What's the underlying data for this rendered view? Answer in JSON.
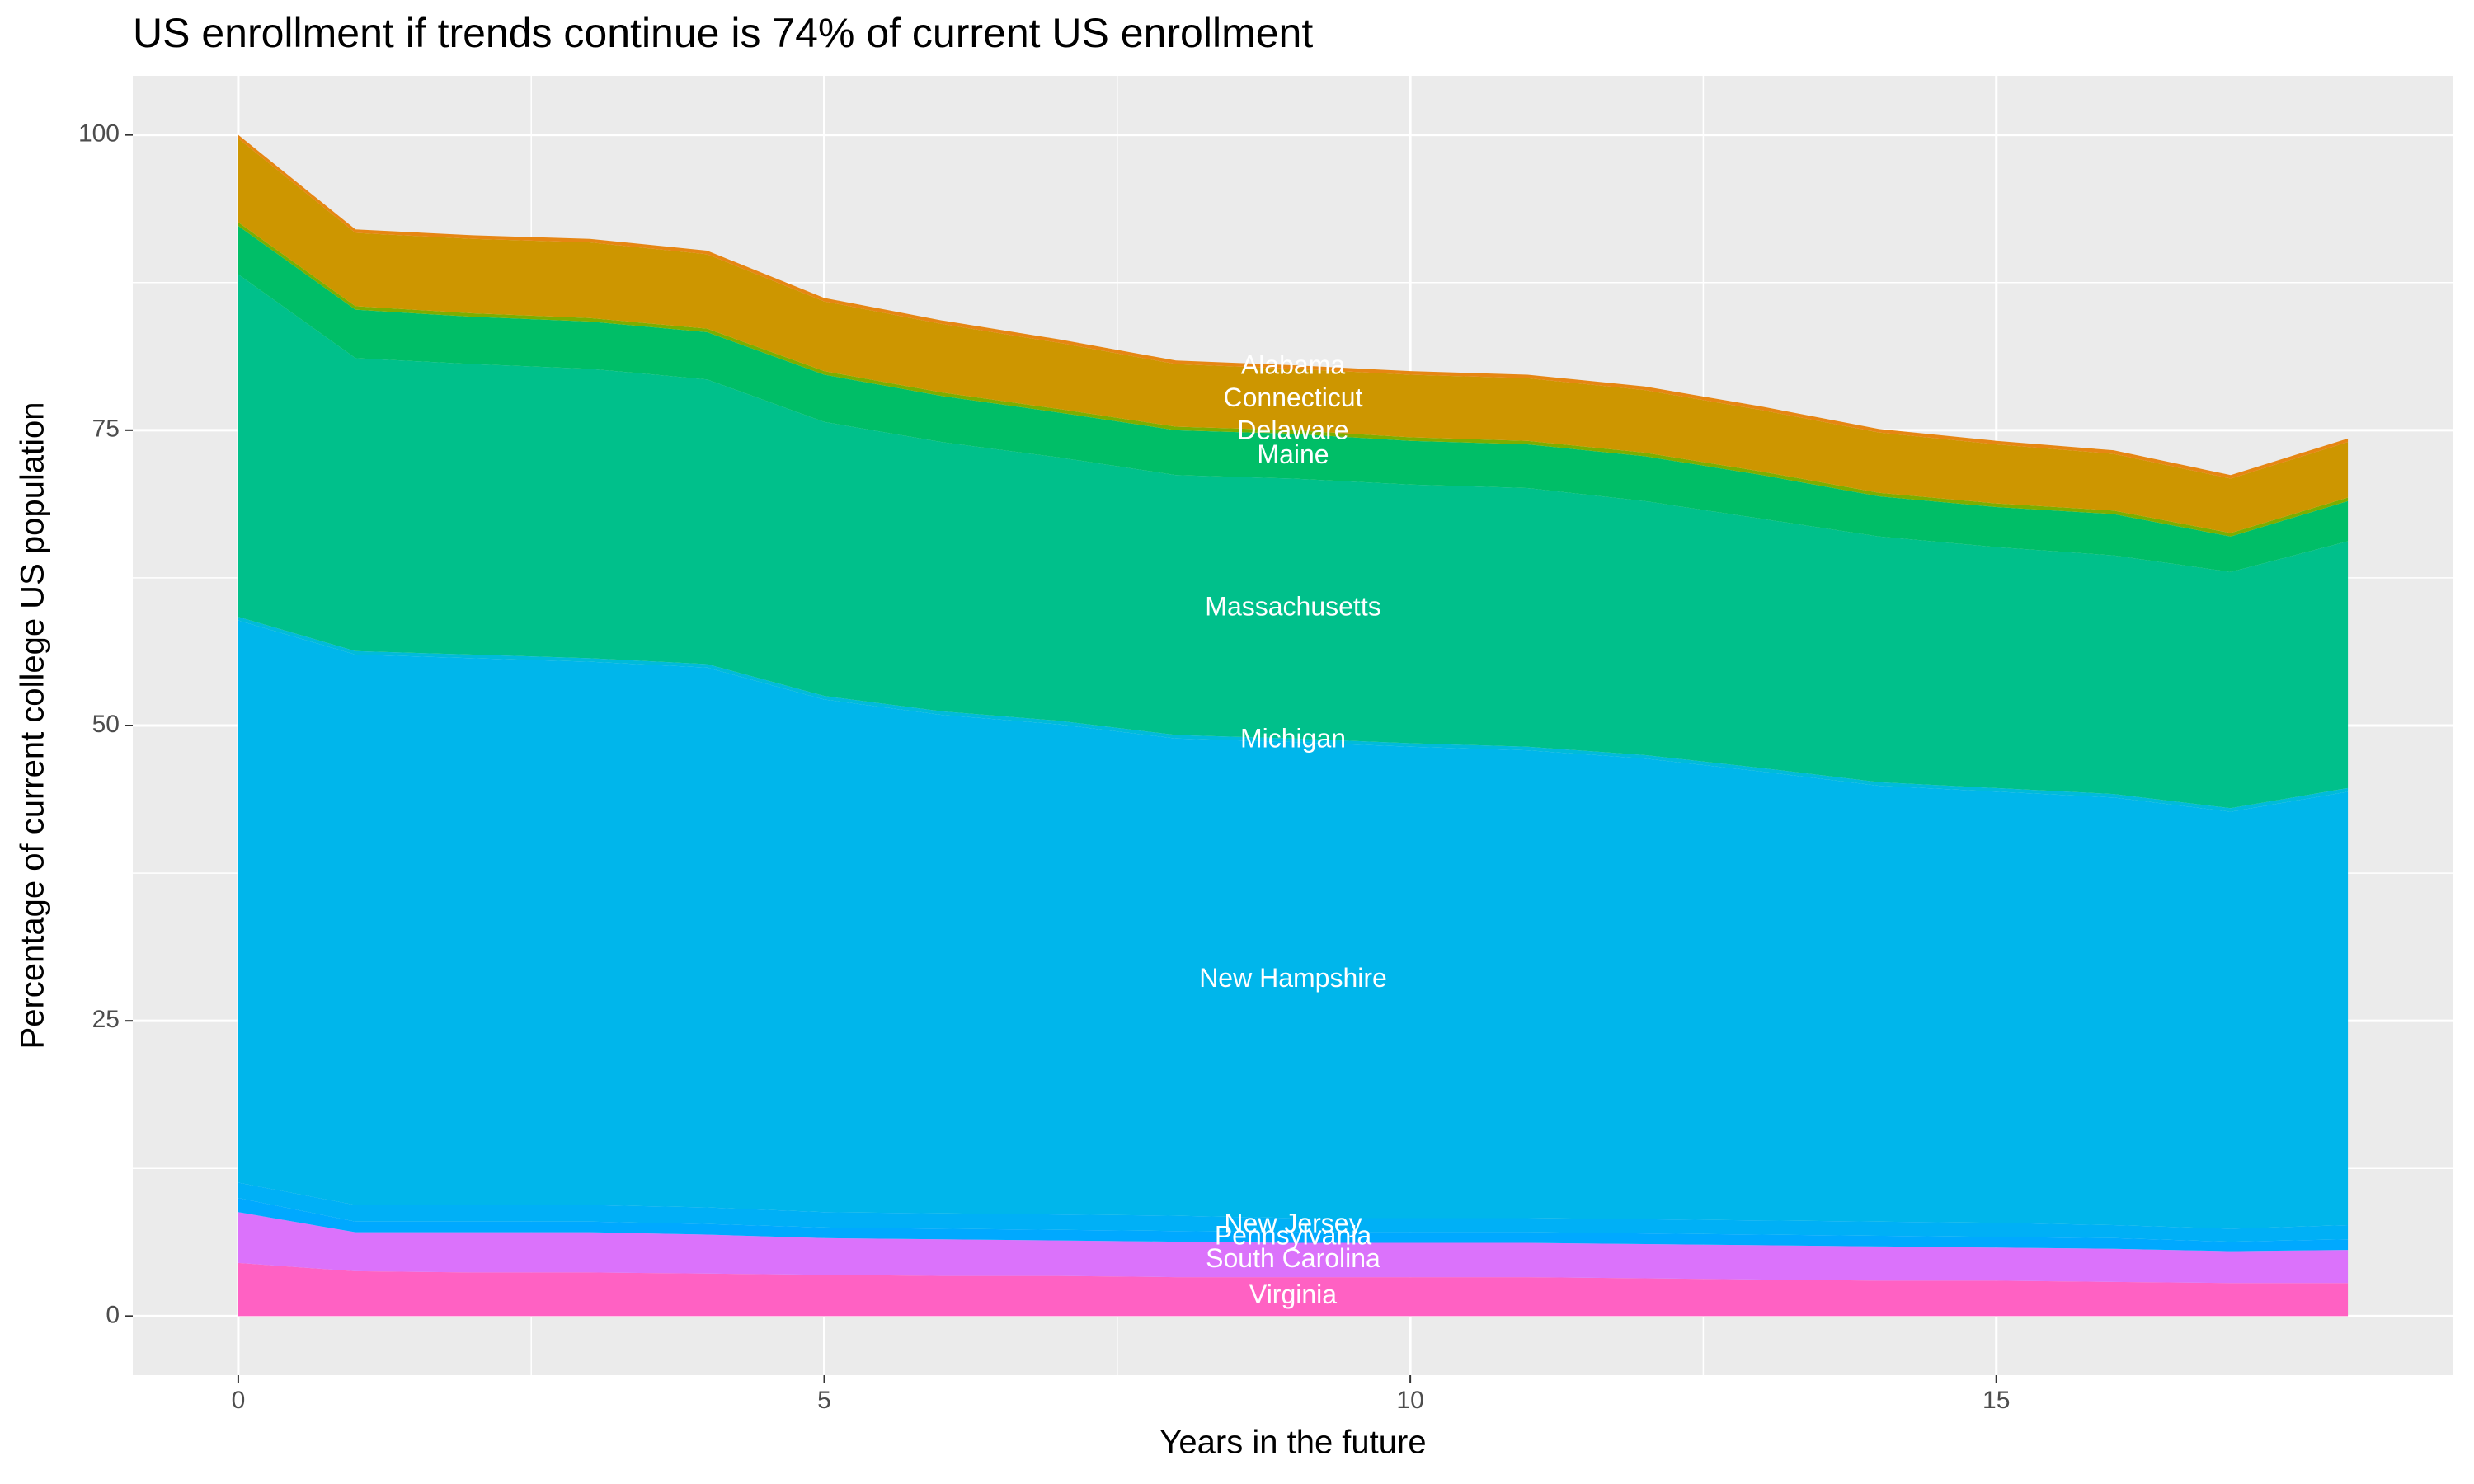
{
  "chart_data": {
    "type": "area",
    "stacked": true,
    "title": "US enrollment if trends continue is 74% of current US enrollment",
    "x_label": "Years in the future",
    "y_label": "Percentage of current college US population",
    "x": [
      0,
      1,
      2,
      3,
      4,
      5,
      6,
      7,
      8,
      9,
      10,
      11,
      12,
      13,
      14,
      15,
      16,
      17,
      18
    ],
    "label_x": 9,
    "xlim": [
      -0.9,
      18.9
    ],
    "ylim": [
      -5,
      105
    ],
    "xticks": [
      0,
      5,
      10,
      15
    ],
    "yticks": [
      0,
      25,
      50,
      75,
      100
    ],
    "grid": true,
    "series": [
      {
        "name": "Virginia",
        "color": "#FF61C3",
        "values": [
          4.5,
          3.8,
          3.7,
          3.7,
          3.6,
          3.5,
          3.4,
          3.4,
          3.3,
          3.3,
          3.3,
          3.3,
          3.2,
          3.1,
          3.0,
          3.0,
          2.9,
          2.8,
          2.8
        ]
      },
      {
        "name": "South Carolina",
        "color": "#DB72FB",
        "values": [
          4.3,
          3.3,
          3.4,
          3.4,
          3.3,
          3.1,
          3.1,
          3.0,
          3.0,
          2.9,
          2.9,
          2.9,
          2.9,
          2.9,
          2.9,
          2.8,
          2.8,
          2.7,
          2.8
        ]
      },
      {
        "name": "Pennsylvania",
        "color": "#00A9FF",
        "values": [
          1.2,
          0.9,
          0.9,
          0.9,
          0.9,
          0.9,
          0.9,
          0.9,
          0.9,
          0.9,
          0.9,
          0.9,
          0.9,
          0.9,
          0.9,
          0.9,
          0.9,
          0.8,
          0.9
        ]
      },
      {
        "name": "New Jersey",
        "color": "#00B0F6",
        "values": [
          1.3,
          1.4,
          1.4,
          1.4,
          1.4,
          1.3,
          1.3,
          1.3,
          1.3,
          1.2,
          1.2,
          1.2,
          1.2,
          1.2,
          1.2,
          1.2,
          1.1,
          1.1,
          1.2
        ]
      },
      {
        "name": "New Hampshire",
        "color": "#00B6EB",
        "values": [
          47.6,
          46.6,
          46.3,
          46.0,
          45.7,
          43.4,
          42.2,
          41.5,
          40.4,
          40.3,
          39.9,
          39.6,
          39.0,
          38.0,
          36.9,
          36.5,
          36.2,
          35.3,
          36.7
        ]
      },
      {
        "name": "Michigan",
        "color": "#00BBDA",
        "values": [
          0.3,
          0.3,
          0.3,
          0.3,
          0.3,
          0.3,
          0.3,
          0.3,
          0.3,
          0.3,
          0.3,
          0.3,
          0.3,
          0.3,
          0.3,
          0.3,
          0.3,
          0.3,
          0.3
        ]
      },
      {
        "name": "Massachusetts",
        "color": "#00C08B",
        "values": [
          29.0,
          24.8,
          24.6,
          24.5,
          24.1,
          23.2,
          22.8,
          22.3,
          22.0,
          22.0,
          21.9,
          21.9,
          21.5,
          21.1,
          20.8,
          20.4,
          20.2,
          20.0,
          20.9
        ]
      },
      {
        "name": "Maine",
        "color": "#00BE67",
        "values": [
          4.1,
          4.1,
          4.0,
          4.0,
          4.0,
          4.0,
          3.9,
          3.8,
          3.8,
          3.8,
          3.7,
          3.7,
          3.8,
          3.7,
          3.4,
          3.4,
          3.5,
          3.0,
          3.4
        ]
      },
      {
        "name": "Delaware",
        "color": "#7CAE00",
        "values": [
          0.3,
          0.3,
          0.3,
          0.3,
          0.3,
          0.3,
          0.3,
          0.3,
          0.3,
          0.3,
          0.3,
          0.3,
          0.3,
          0.3,
          0.3,
          0.3,
          0.3,
          0.3,
          0.3
        ]
      },
      {
        "name": "Connecticut",
        "color": "#CD9600",
        "values": [
          7.1,
          6.2,
          6.3,
          6.4,
          6.3,
          5.9,
          5.8,
          5.6,
          5.3,
          5.2,
          5.3,
          5.3,
          5.3,
          5.2,
          5.1,
          5.0,
          4.8,
          4.6,
          4.7
        ]
      },
      {
        "name": "Alabama",
        "color": "#E68613",
        "values": [
          0.3,
          0.3,
          0.3,
          0.3,
          0.3,
          0.3,
          0.3,
          0.3,
          0.3,
          0.3,
          0.3,
          0.3,
          0.3,
          0.3,
          0.3,
          0.3,
          0.3,
          0.3,
          0.3
        ]
      }
    ]
  }
}
